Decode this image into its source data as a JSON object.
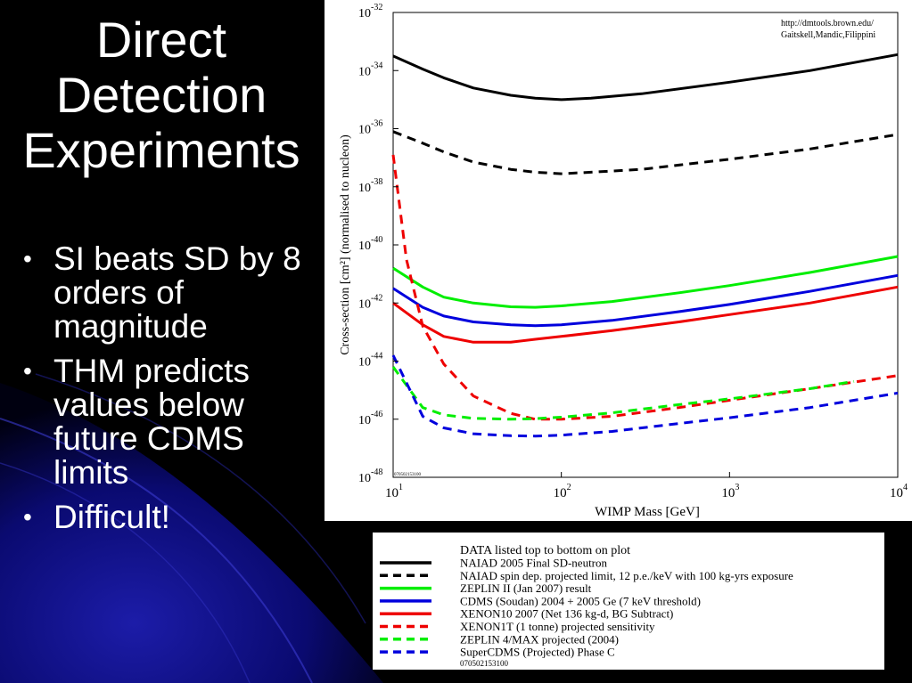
{
  "slide": {
    "title_lines": [
      "Direct",
      "Detection",
      "Experiments"
    ],
    "bullets": [
      "SI beats SD by 8 orders of magnitude",
      "THM predicts values below future CDMS limits",
      "Difficult!"
    ],
    "bullet_glyph": "•",
    "colors": {
      "background": "#000000",
      "swirl": "#1a1aa0",
      "text": "#ffffff"
    }
  },
  "chart_data": {
    "type": "line",
    "xlabel": "WIMP Mass [GeV]",
    "ylabel": "Cross-section [cm²] (normalised to nucleon)",
    "xscale": "log",
    "yscale": "log",
    "xlim": [
      10,
      10000
    ],
    "ylim": [
      1e-48,
      1e-32
    ],
    "x_ticks": [
      {
        "base": "10",
        "exp": "1",
        "value": 10
      },
      {
        "base": "10",
        "exp": "2",
        "value": 100
      },
      {
        "base": "10",
        "exp": "3",
        "value": 1000
      },
      {
        "base": "10",
        "exp": "4",
        "value": 10000
      }
    ],
    "y_ticks": [
      {
        "base": "10",
        "exp": "-32",
        "value": -32
      },
      {
        "base": "10",
        "exp": "-34",
        "value": -34
      },
      {
        "base": "10",
        "exp": "-36",
        "value": -36
      },
      {
        "base": "10",
        "exp": "-38",
        "value": -38
      },
      {
        "base": "10",
        "exp": "-40",
        "value": -40
      },
      {
        "base": "10",
        "exp": "-42",
        "value": -42
      },
      {
        "base": "10",
        "exp": "-44",
        "value": -44
      },
      {
        "base": "10",
        "exp": "-46",
        "value": -46
      },
      {
        "base": "10",
        "exp": "-48",
        "value": -48
      }
    ],
    "source_lines": [
      "http://dmtools.brown.edu/",
      "Gaitskell,Mandic,Filippini"
    ],
    "stamp": "070502153100",
    "grid": false,
    "series": [
      {
        "name": "NAIAD 2005 Final SD-neutron",
        "color": "#000000",
        "dash": false,
        "x": [
          10,
          15,
          20,
          30,
          50,
          70,
          100,
          150,
          300,
          1000,
          3000,
          10000
        ],
        "log10_y": [
          -33.5,
          -33.95,
          -34.25,
          -34.6,
          -34.85,
          -34.95,
          -35.0,
          -34.95,
          -34.8,
          -34.4,
          -34.0,
          -33.45
        ]
      },
      {
        "name": "NAIAD spin dep. projected limit, 12 p.e./keV with 100 kg-yrs exposure",
        "color": "#000000",
        "dash": true,
        "x": [
          10,
          15,
          20,
          30,
          50,
          70,
          100,
          150,
          300,
          1000,
          3000,
          10000
        ],
        "log10_y": [
          -36.1,
          -36.5,
          -36.8,
          -37.15,
          -37.4,
          -37.5,
          -37.55,
          -37.5,
          -37.4,
          -37.05,
          -36.7,
          -36.2
        ]
      },
      {
        "name": "ZEPLIN II (Jan 2007) result",
        "color": "#00ee00",
        "dash": false,
        "x": [
          10,
          15,
          20,
          30,
          50,
          70,
          100,
          200,
          500,
          1000,
          3000,
          10000
        ],
        "log10_y": [
          -40.8,
          -41.45,
          -41.8,
          -42.0,
          -42.13,
          -42.15,
          -42.1,
          -41.95,
          -41.65,
          -41.4,
          -40.95,
          -40.4
        ]
      },
      {
        "name": "CDMS (Soudan) 2004 + 2005 Ge (7 keV threshold)",
        "color": "#0000dd",
        "dash": false,
        "x": [
          10,
          15,
          20,
          30,
          50,
          70,
          100,
          200,
          500,
          1000,
          3000,
          10000
        ],
        "log10_y": [
          -41.5,
          -42.15,
          -42.45,
          -42.65,
          -42.75,
          -42.78,
          -42.75,
          -42.6,
          -42.3,
          -42.05,
          -41.6,
          -41.05
        ]
      },
      {
        "name": "XENON10 2007 (Net 136 kg-d, BG Subtract)",
        "color": "#ee0000",
        "dash": false,
        "x": [
          10,
          15,
          20,
          30,
          50,
          70,
          100,
          200,
          500,
          1000,
          3000,
          10000
        ],
        "log10_y": [
          -42.0,
          -42.75,
          -43.15,
          -43.35,
          -43.35,
          -43.25,
          -43.15,
          -42.95,
          -42.65,
          -42.4,
          -42.0,
          -41.45
        ]
      },
      {
        "name": "XENON1T (1 tonne) projected sensitivity",
        "color": "#ee0000",
        "dash": true,
        "x": [
          10,
          12,
          15,
          20,
          30,
          50,
          70,
          100,
          200,
          500,
          1000,
          3000,
          10000
        ],
        "log10_y": [
          -36.9,
          -40.5,
          -42.8,
          -44.1,
          -45.2,
          -45.8,
          -46.0,
          -46.0,
          -45.9,
          -45.6,
          -45.35,
          -44.95,
          -44.5
        ]
      },
      {
        "name": "ZEPLIN 4/MAX projected (2004)",
        "color": "#00ee00",
        "dash": true,
        "x": [
          10,
          15,
          20,
          30,
          50,
          70,
          100,
          200,
          500,
          1000,
          3000,
          5500
        ],
        "log10_y": [
          -44.2,
          -45.6,
          -45.85,
          -45.97,
          -46.0,
          -45.98,
          -45.93,
          -45.78,
          -45.5,
          -45.3,
          -44.95,
          -44.7
        ]
      },
      {
        "name": "SuperCDMS (Projected) Phase C",
        "color": "#0000dd",
        "dash": true,
        "x": [
          10,
          15,
          20,
          30,
          50,
          70,
          100,
          200,
          500,
          1000,
          3000,
          10000
        ],
        "log10_y": [
          -43.8,
          -45.9,
          -46.3,
          -46.5,
          -46.57,
          -46.58,
          -46.55,
          -46.42,
          -46.15,
          -45.95,
          -45.6,
          -45.1
        ]
      }
    ]
  },
  "legend": {
    "header": "DATA listed top to bottom on plot",
    "stamp": "070502153100"
  }
}
